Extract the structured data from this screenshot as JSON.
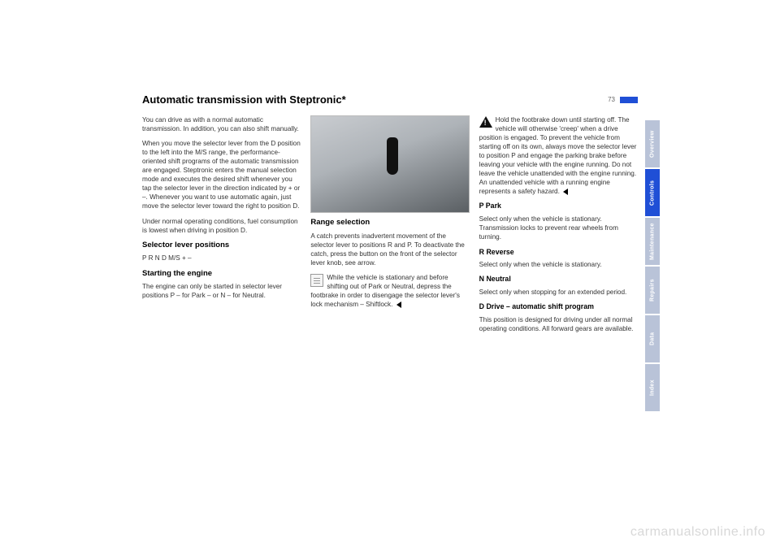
{
  "page_number": "73",
  "title": "Automatic transmission with Steptronic*",
  "col1": {
    "p1": "You can drive as with a normal automatic transmission. In addition, you can also shift manually.",
    "p2": "When you move the selector lever from the D position to the left into the M/S range, the performance-oriented shift programs of the automatic transmission are engaged. Steptronic enters the manual selection mode and executes the desired shift whenever you tap the selector lever in the direction indicated by + or –. Whenever you want to use automatic again, just move the selector lever toward the right to position D.",
    "p3": "Under normal operating conditions, fuel consumption is lowest when driving in position D.",
    "h_positions": "Selector lever positions",
    "positions": " P R N D M/S + –",
    "h_start": "Starting the engine",
    "p_start": "The engine can only be started in selector lever positions P – for Park – or N – for Neutral."
  },
  "col2": {
    "h_range": "Range selection",
    "p_range": "A catch prevents inadvertent movement of the selector lever to positions R and P. To deactivate the catch, press the button on the front of the selector lever knob, see arrow.",
    "p_note": "While the vehicle is stationary and before shifting out of Park or Neutral, depress the footbrake in order to disengage the selector lever's lock mechanism – Shiftlock."
  },
  "col3": {
    "p_warn": "Hold the footbrake down until starting off. The vehicle will otherwise 'creep' when a drive position is engaged. To prevent the vehicle from starting off on its own, always move the selector lever to position P and engage the parking brake before leaving your vehicle with the engine running. Do not leave the vehicle unattended with the engine running. An unattended vehicle with a running engine represents a safety hazard.",
    "h_p": "P  Park",
    "p_p": "Select only when the vehicle is stationary. Transmission locks to prevent rear wheels from turning.",
    "h_r": "R  Reverse",
    "p_r": "Select only when the vehicle is stationary.",
    "h_n": "N  Neutral",
    "p_n": "Select only when stopping for an extended period.",
    "h_d": "D  Drive – automatic shift program",
    "p_d": "This position is designed for driving under all normal operating conditions. All forward gears are available."
  },
  "tabs": [
    {
      "label": "Overview",
      "bg": "#b9c3d8"
    },
    {
      "label": "Controls",
      "bg": "#1f4fd6"
    },
    {
      "label": "Maintenance",
      "bg": "#b9c3d8"
    },
    {
      "label": "Repairs",
      "bg": "#b9c3d8"
    },
    {
      "label": "Data",
      "bg": "#b9c3d8"
    },
    {
      "label": "Index",
      "bg": "#b9c3d8"
    }
  ],
  "watermark": "carmanualsonline.info"
}
